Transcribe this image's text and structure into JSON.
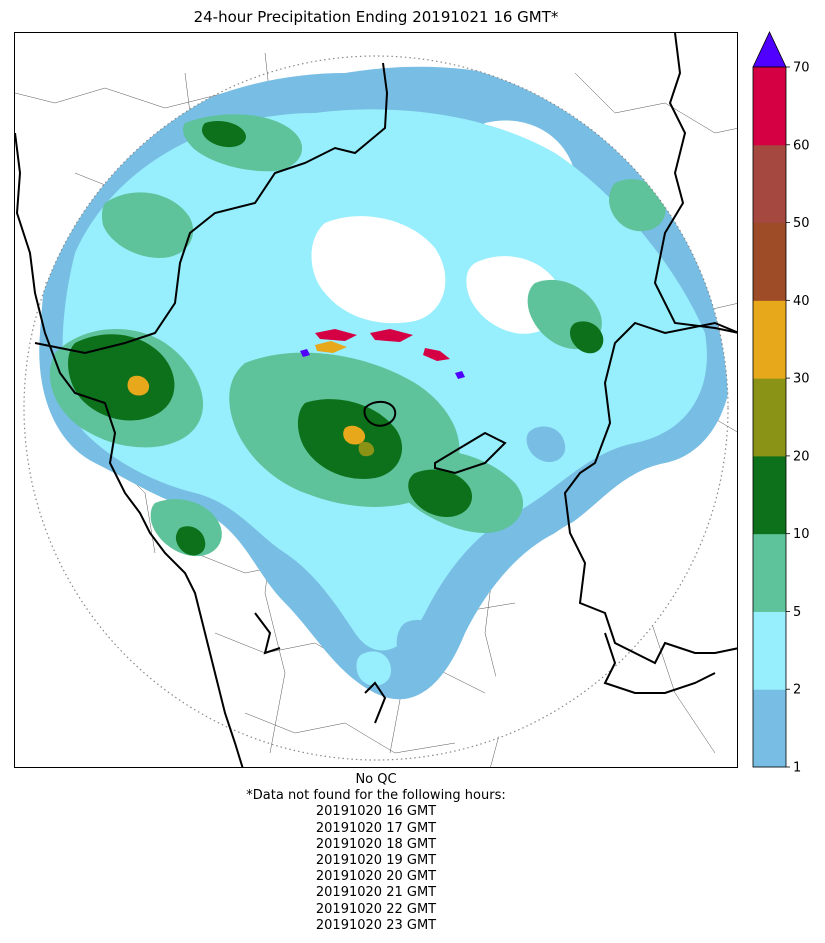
{
  "title": "24-hour Precipitation Ending 20191021 16 GMT*",
  "colorbar": {
    "levels": [
      {
        "min": 1,
        "max": 2,
        "color": "#78bde3"
      },
      {
        "min": 2,
        "max": 5,
        "color": "#97eefc"
      },
      {
        "min": 5,
        "max": 10,
        "color": "#5ec39a"
      },
      {
        "min": 10,
        "max": 20,
        "color": "#0d711b"
      },
      {
        "min": 20,
        "max": 30,
        "color": "#8b9317"
      },
      {
        "min": 30,
        "max": 40,
        "color": "#e7a81b"
      },
      {
        "min": 40,
        "max": 50,
        "color": "#9d4c27"
      },
      {
        "min": 50,
        "max": 60,
        "color": "#a44840"
      },
      {
        "min": 60,
        "max": 70,
        "color": "#d50044"
      }
    ],
    "extend_color": "#4f00ff",
    "tick_labels": [
      "1",
      "2",
      "5",
      "10",
      "20",
      "30",
      "40",
      "50",
      "60",
      "70"
    ]
  },
  "footer": {
    "qc": "No QC",
    "note": "*Data not found for the following hours:",
    "missing_hours": [
      "20191020 16 GMT",
      "20191020 17 GMT",
      "20191020 18 GMT",
      "20191020 19 GMT",
      "20191020 20 GMT",
      "20191020 21 GMT",
      "20191020 22 GMT",
      "20191020 23 GMT"
    ]
  }
}
